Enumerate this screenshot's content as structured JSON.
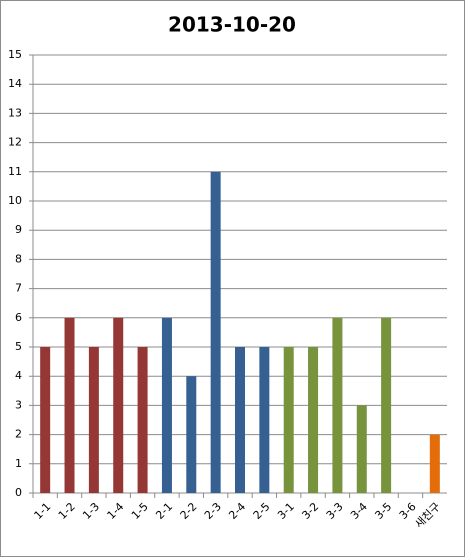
{
  "chart_data": {
    "type": "bar",
    "title": "2013-10-20",
    "categories": [
      "1-1",
      "1-2",
      "1-3",
      "1-4",
      "1-5",
      "2-1",
      "2-2",
      "2-3",
      "2-4",
      "2-5",
      "3-1",
      "3-2",
      "3-3",
      "3-4",
      "3-5",
      "3-6",
      "새친구"
    ],
    "values": [
      5,
      6,
      5,
      6,
      5,
      6,
      4,
      11,
      5,
      5,
      5,
      5,
      6,
      3,
      6,
      0,
      2
    ],
    "colors": [
      "#953735",
      "#953735",
      "#953735",
      "#953735",
      "#953735",
      "#376092",
      "#376092",
      "#376092",
      "#376092",
      "#376092",
      "#77933c",
      "#77933c",
      "#77933c",
      "#77933c",
      "#77933c",
      "#77933c",
      "#e46c0a"
    ],
    "ylim": [
      0,
      15
    ],
    "yticks": [
      0,
      1,
      2,
      3,
      4,
      5,
      6,
      7,
      8,
      9,
      10,
      11,
      12,
      13,
      14,
      15
    ],
    "grid": true
  }
}
